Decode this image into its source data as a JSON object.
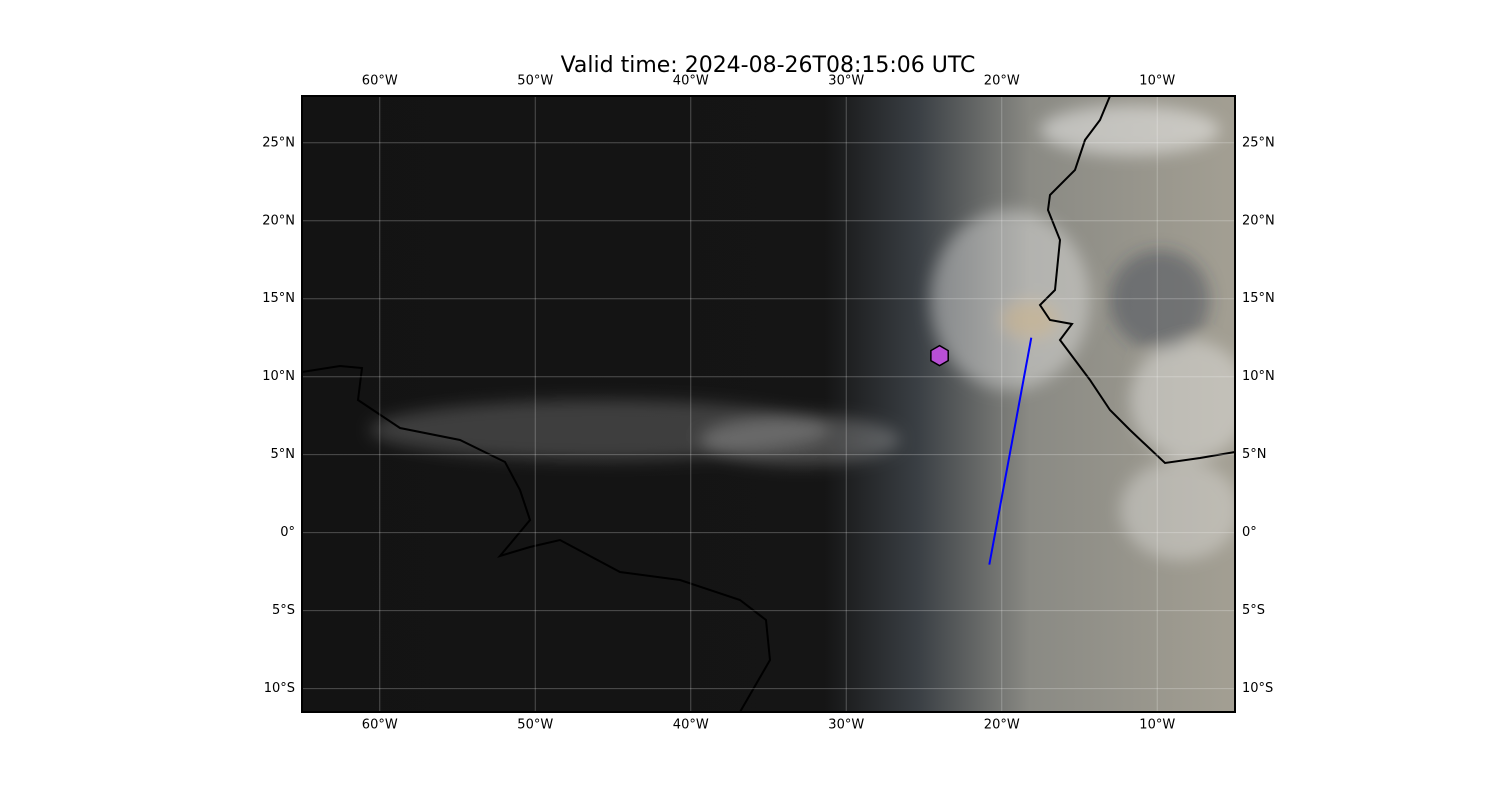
{
  "map": {
    "type": "map",
    "title": "Valid time: 2024-08-26T08:15:06 UTC",
    "xlim": [
      -65,
      -5
    ],
    "ylim": [
      -11.5,
      28
    ],
    "xticks": [
      {
        "value": -60,
        "label": "60°W"
      },
      {
        "value": -50,
        "label": "50°W"
      },
      {
        "value": -40,
        "label": "40°W"
      },
      {
        "value": -30,
        "label": "30°W"
      },
      {
        "value": -20,
        "label": "20°W"
      },
      {
        "value": -10,
        "label": "10°W"
      }
    ],
    "yticks": [
      {
        "value": -10,
        "label": "10°S"
      },
      {
        "value": -5,
        "label": "5°S"
      },
      {
        "value": 0,
        "label": "0°"
      },
      {
        "value": 5,
        "label": "5°N"
      },
      {
        "value": 10,
        "label": "10°N"
      },
      {
        "value": 15,
        "label": "15°N"
      },
      {
        "value": 20,
        "label": "20°N"
      },
      {
        "value": 25,
        "label": "25°N"
      }
    ],
    "grid": true,
    "track": {
      "color": "#0000ff",
      "lon": [
        -18.1,
        -20.8
      ],
      "lat": [
        12.5,
        -2.05
      ]
    },
    "marker": {
      "color": "#b94fd6",
      "lon": -24,
      "lat": 11.35
    }
  }
}
